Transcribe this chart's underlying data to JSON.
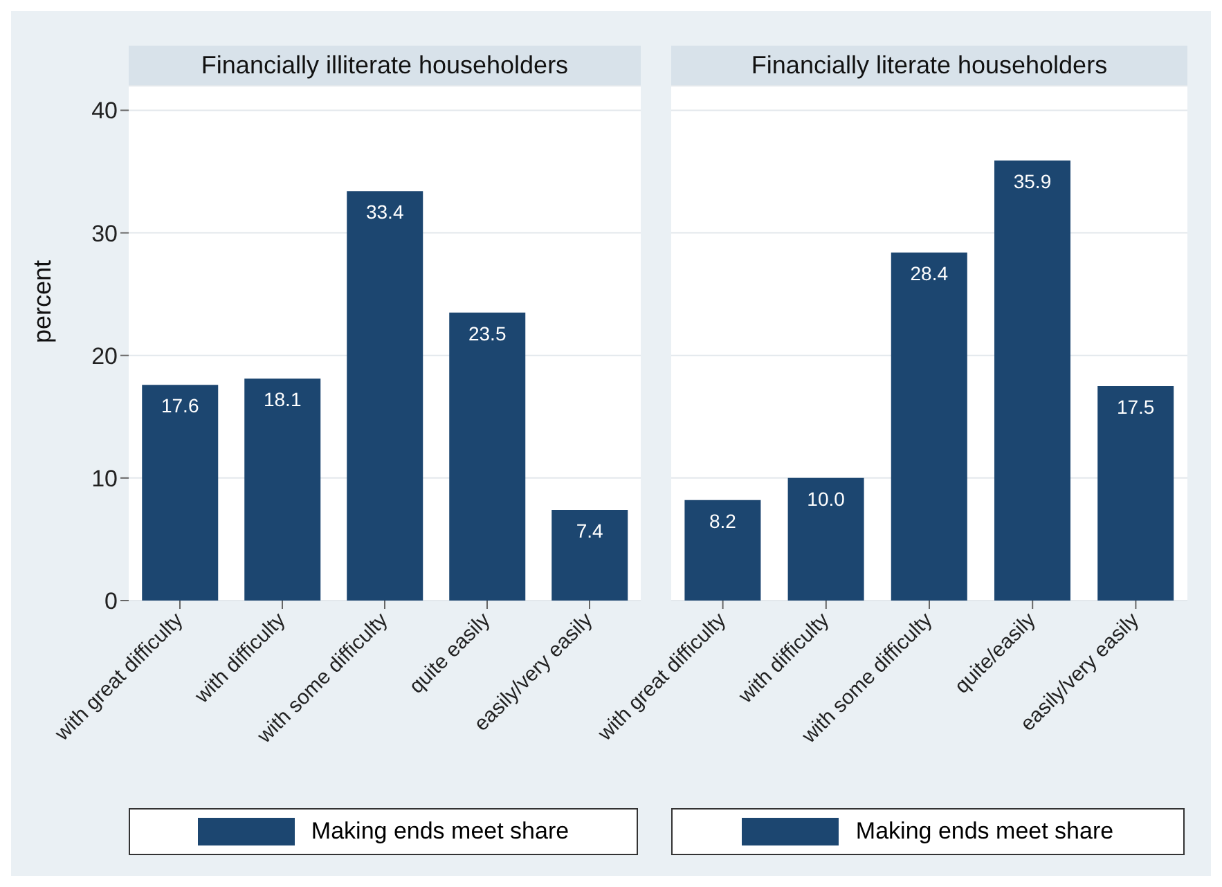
{
  "chart_data": [
    {
      "type": "bar",
      "title": "Financially illiterate householders",
      "ylabel": "percent",
      "categories": [
        "with great difficulty",
        "with difficulty",
        "with some difficulty",
        "quite easily",
        "easily/very easily"
      ],
      "series": [
        {
          "name": "Making ends meet share",
          "color": "#1c4670",
          "values": [
            17.6,
            18.1,
            33.4,
            23.5,
            7.4
          ],
          "value_labels": [
            "17.6",
            "18.1",
            "33.4",
            "23.5",
            "7.4"
          ]
        }
      ],
      "ylim": [
        0,
        42
      ],
      "yticks": [
        0,
        10,
        20,
        30,
        40
      ],
      "grid": "y",
      "legend": "bottom"
    },
    {
      "type": "bar",
      "title": "Financially literate householders",
      "categories": [
        "with great difficulty",
        "with difficulty",
        "with some difficulty",
        "quite/easily",
        "easily/very easily"
      ],
      "series": [
        {
          "name": "Making ends meet share",
          "color": "#1c4670",
          "values": [
            8.2,
            10.0,
            28.4,
            35.9,
            17.5
          ],
          "value_labels": [
            "8.2",
            "10.0",
            "28.4",
            "35.9",
            "17.5"
          ]
        }
      ],
      "ylim": [
        0,
        42
      ],
      "yticks": [
        0,
        10,
        20,
        30,
        40
      ],
      "grid": "y",
      "legend": "bottom",
      "tick_labels": "x"
    }
  ]
}
